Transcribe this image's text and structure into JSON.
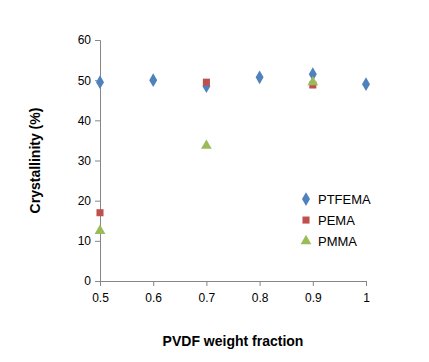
{
  "chart_data": {
    "type": "scatter",
    "x_label": "PVDF weight fraction",
    "y_label": "Crystallinity (%)",
    "xlim": [
      0.5,
      1
    ],
    "xticks": [
      0.5,
      0.6,
      0.7,
      0.8,
      0.9,
      1
    ],
    "ylim": [
      0,
      60
    ],
    "yticks": [
      0,
      10,
      20,
      30,
      40,
      50,
      60
    ],
    "grid": false,
    "legend": "right",
    "series": [
      {
        "name": "PTFEMA",
        "color": "#4f81bd",
        "marker": "diamond",
        "x": [
          0.5,
          0.6,
          0.7,
          0.8,
          0.9,
          1
        ],
        "values": [
          49.5,
          50,
          48.5,
          50.7,
          51.5,
          49
        ]
      },
      {
        "name": "PEMA",
        "color": "#c0504d",
        "marker": "square",
        "x": [
          0.5,
          0.7,
          0.9
        ],
        "values": [
          17,
          49.5,
          48.8
        ]
      },
      {
        "name": "PMMA",
        "color": "#9bbb59",
        "marker": "triangle",
        "x": [
          0.5,
          0.7,
          0.9
        ],
        "values": [
          12.5,
          33.7,
          49.5
        ]
      }
    ]
  }
}
